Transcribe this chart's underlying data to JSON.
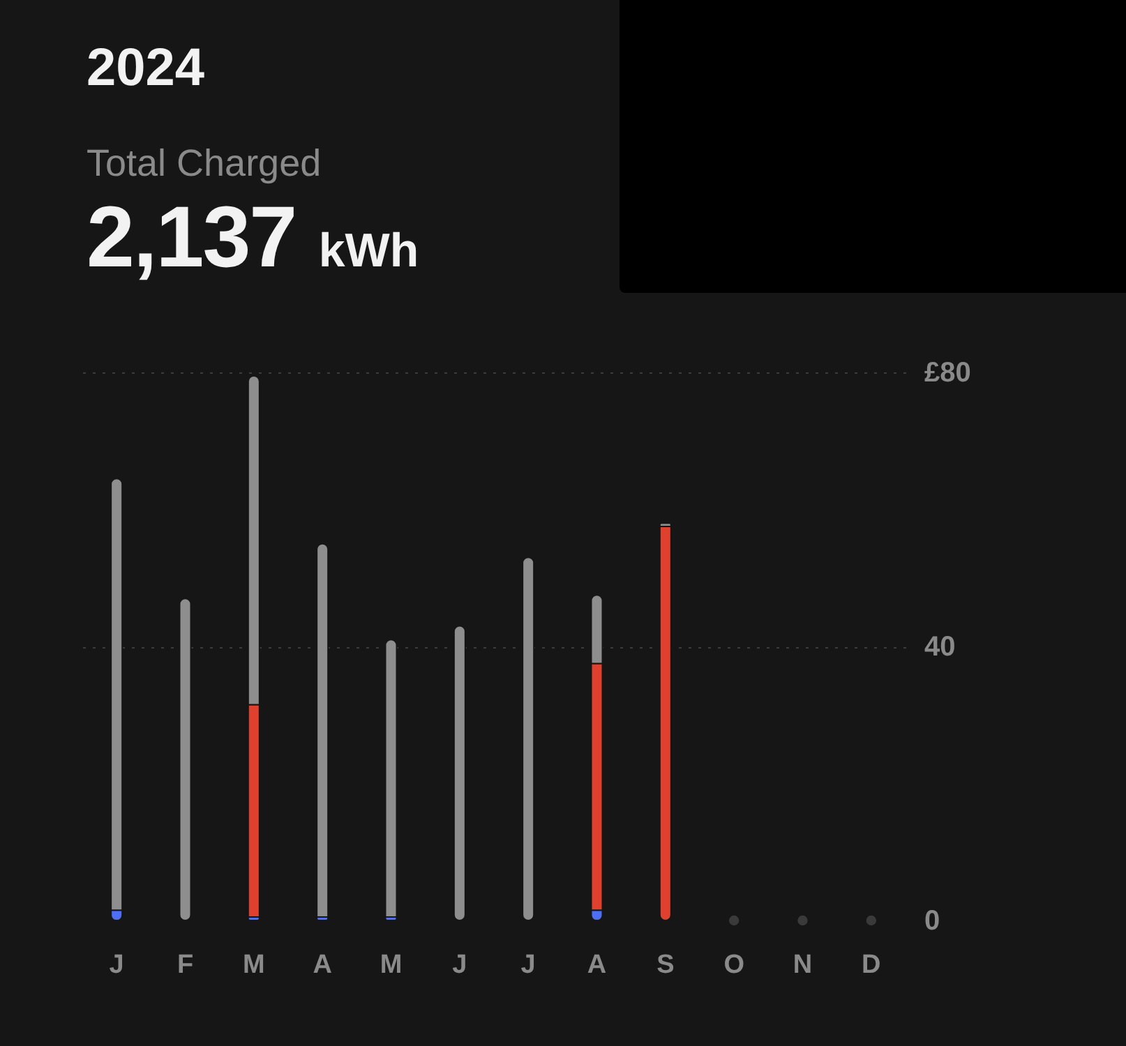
{
  "chart_data": {
    "type": "bar",
    "title": "2024",
    "subtitle": "Total Charged",
    "annotations": [
      "2,137",
      "kWh"
    ],
    "categories": [
      "J",
      "F",
      "M",
      "A",
      "M",
      "J",
      "J",
      "A",
      "S",
      "O",
      "N",
      "D"
    ],
    "stacked": true,
    "series": [
      {
        "color": "#4d6ef5",
        "values": [
          1.5,
          null,
          0.5,
          0.5,
          0.5,
          null,
          null,
          1.5,
          null,
          null,
          null,
          null
        ]
      },
      {
        "color": "#e0402e",
        "values": [
          null,
          null,
          31,
          null,
          null,
          null,
          null,
          36,
          57.5,
          null,
          null,
          null
        ]
      },
      {
        "color": "#8e8e8e",
        "values": [
          63,
          47,
          48,
          54.5,
          40.5,
          43,
          53,
          10,
          0.5,
          null,
          null,
          null
        ]
      },
      {
        "type": "scatter",
        "color": "#3a3a3a",
        "values": [
          null,
          null,
          null,
          null,
          null,
          null,
          null,
          null,
          null,
          0,
          0,
          0
        ]
      }
    ],
    "ylim": [
      0,
      80
    ],
    "yticks": [
      0,
      40,
      {
        "value": 80,
        "label": "£80"
      }
    ],
    "grid": "y"
  }
}
